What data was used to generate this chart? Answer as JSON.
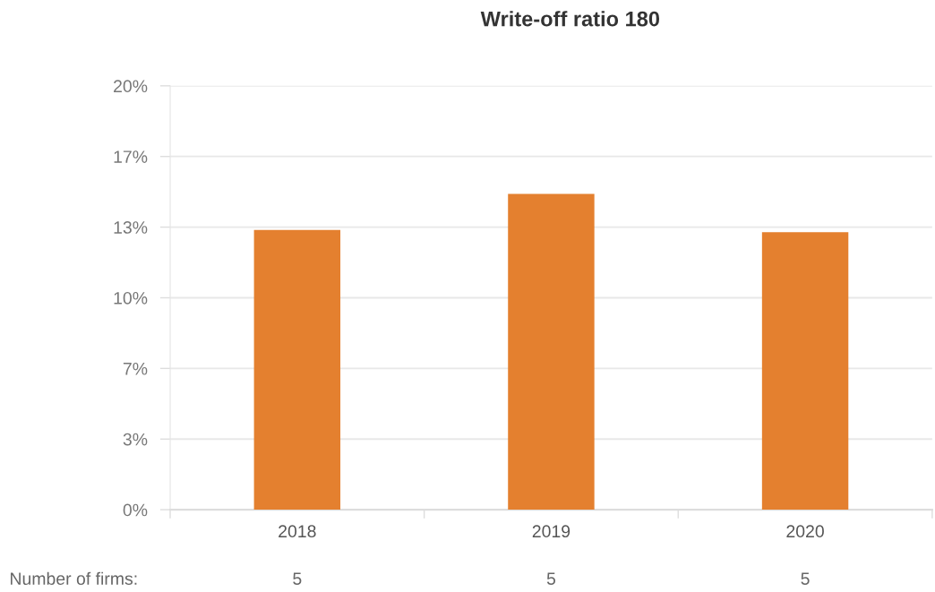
{
  "chart_data": {
    "type": "bar",
    "title": "Write-off ratio 180",
    "categories": [
      "2018",
      "2019",
      "2020"
    ],
    "series": [
      {
        "color": "#e4802f",
        "values": [
          13.2,
          14.9,
          13.1
        ]
      }
    ],
    "ylim": [
      0,
      20
    ],
    "yticks": [
      {
        "value": 0,
        "label": "0%"
      },
      {
        "value": 3.333,
        "label": "3%"
      },
      {
        "value": 6.667,
        "label": "7%"
      },
      {
        "value": 10,
        "label": "10%"
      },
      {
        "value": 13.333,
        "label": "13%"
      },
      {
        "value": 16.667,
        "label": "17%"
      },
      {
        "value": 20,
        "label": "20%"
      }
    ],
    "grid": "y",
    "annotations": [
      "Number of firms:",
      "5",
      "5",
      "5"
    ]
  }
}
